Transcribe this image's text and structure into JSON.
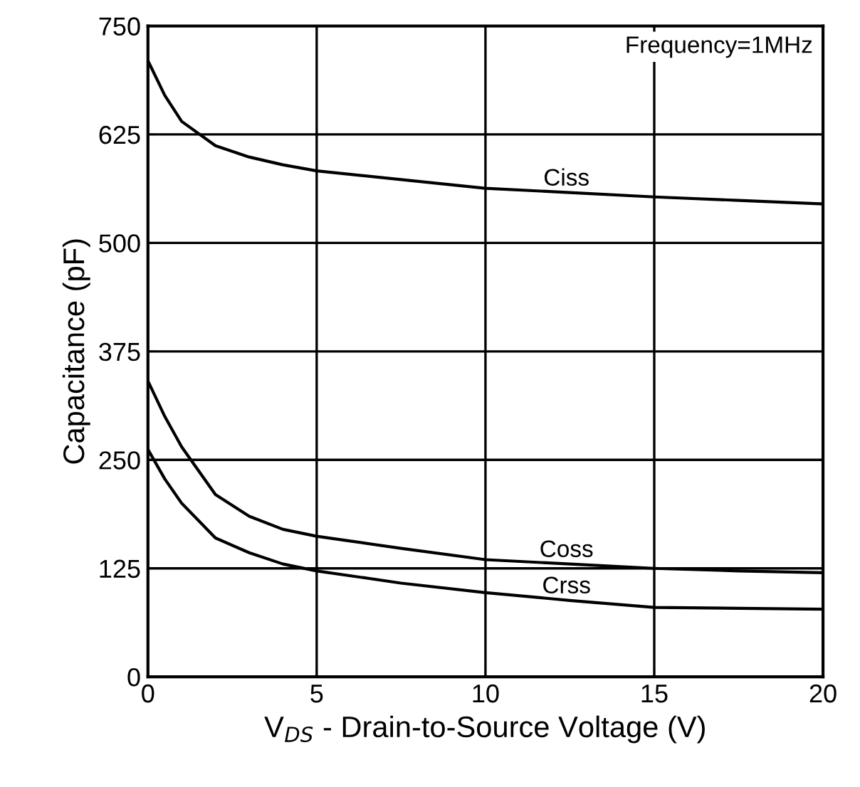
{
  "chart_data": {
    "type": "line",
    "xlabel": "V$_{DS}$ - Drain-to-Source Voltage (V)",
    "ylabel": "Capacitance (pF)",
    "annotations": [
      "Frequency=1MHz"
    ],
    "x": [
      0,
      0.5,
      1,
      2,
      3,
      4,
      5,
      7.5,
      10,
      12.5,
      15,
      17.5,
      20
    ],
    "series": [
      {
        "name": "Ciss",
        "color": "#000000",
        "values": [
          710,
          670,
          640,
          612,
          599,
          590,
          583,
          573,
          563,
          558,
          553,
          549,
          545
        ]
      },
      {
        "name": "Coss",
        "color": "#000000",
        "values": [
          341,
          300,
          265,
          210,
          185,
          170,
          162,
          148,
          135,
          130,
          125,
          122,
          120
        ]
      },
      {
        "name": "Crss",
        "color": "#000000",
        "values": [
          262,
          228,
          200,
          160,
          143,
          130,
          122,
          108,
          97,
          88,
          80,
          79,
          78
        ]
      }
    ],
    "xlim": [
      0,
      20
    ],
    "ylim": [
      0,
      750
    ],
    "xticks": [
      0,
      5,
      10,
      15,
      20
    ],
    "yticks": [
      0,
      125,
      250,
      375,
      500,
      625,
      750
    ],
    "grid": true,
    "legend": false,
    "marker": "none",
    "line_style": "solid"
  }
}
